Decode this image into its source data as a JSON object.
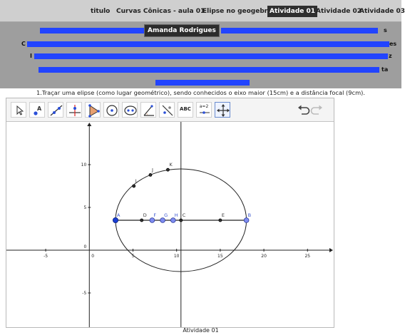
{
  "nav": {
    "items": [
      "titulo",
      "Curvas Cônicas - aula 01",
      "Elipse no geogebra",
      "Atividade 01",
      "Atividade 02",
      "Atividade 03"
    ],
    "active": "Atividade 01"
  },
  "header": {
    "author": "Amanda Rodrigues",
    "line_endings": [
      "s",
      "es",
      "z",
      "ta"
    ],
    "line_starts": [
      "C",
      "I"
    ]
  },
  "instruction": "1.Traçar uma elipse (como lugar geométrico), sendo conhecidos o eixo maior (15cm) e a distância focal (9cm).",
  "toolbar": {
    "tools": [
      "move-tool",
      "point-tool",
      "line-tool",
      "perpendicular-tool",
      "polygon-tool",
      "circle-tool",
      "conic-tool",
      "angle-tool",
      "reflect-tool",
      "text-tool",
      "slider-tool",
      "move-view-tool"
    ],
    "text_tool_label": "ABC",
    "slider_label": "a=2",
    "selected_tool": "move-view-tool"
  },
  "plot": {
    "x_ticks": [
      "-5",
      "0",
      "5",
      "10",
      "15",
      "20",
      "25"
    ],
    "y_ticks": [
      "10",
      "5",
      "0",
      "-5"
    ],
    "x_tick_values": [
      -5,
      0,
      5,
      10,
      15,
      20,
      25
    ],
    "y_tick_values": [
      10,
      5,
      0,
      -5
    ],
    "xlim": [
      -9.5,
      28
    ],
    "ylim": [
      -9,
      15
    ],
    "ellipse": {
      "center": [
        10.5,
        3.5
      ],
      "semi_major": 7.5,
      "semi_minor": 6
    },
    "vertical_line_x": 10.5,
    "segment": {
      "from": "A",
      "to": "B"
    },
    "points": [
      {
        "label": "A",
        "x": 3,
        "y": 3.5,
        "style": "vertex"
      },
      {
        "label": "B",
        "x": 18,
        "y": 3.5,
        "style": "focus"
      },
      {
        "label": "C",
        "x": 10.5,
        "y": 3.5,
        "style": "small"
      },
      {
        "label": "D",
        "x": 6,
        "y": 3.5,
        "style": "small"
      },
      {
        "label": "E",
        "x": 15,
        "y": 3.5,
        "style": "small"
      },
      {
        "label": "F",
        "x": 7.2,
        "y": 3.5,
        "style": "free"
      },
      {
        "label": "G",
        "x": 8.4,
        "y": 3.5,
        "style": "free"
      },
      {
        "label": "H",
        "x": 9.6,
        "y": 3.5,
        "style": "free"
      },
      {
        "label": "I",
        "x": 5.1,
        "y": 7.5,
        "style": "small"
      },
      {
        "label": "J",
        "x": 7.0,
        "y": 8.8,
        "style": "small"
      },
      {
        "label": "K",
        "x": 9.0,
        "y": 9.4,
        "style": "small"
      }
    ],
    "colors": {
      "vertex": "#1a3fd6",
      "free": "#7f8cf0",
      "small": "#333333",
      "focus": "#7f8cf0",
      "label_blue": "#3a55d0"
    }
  },
  "footer": "Atividade 01"
}
